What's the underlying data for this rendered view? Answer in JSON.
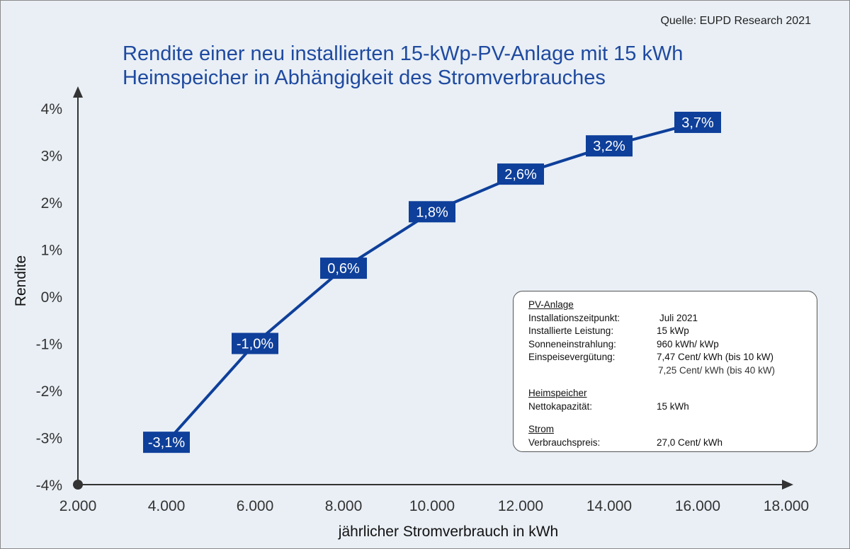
{
  "source": "Quelle: EUPD Research 2021",
  "title_lines": [
    "Rendite einer neu installierten 15-kWp-PV-Anlage mit 15 kWh",
    "Heimspeicher in Abhängigkeit des Stromverbrauches"
  ],
  "chart_data": {
    "type": "line",
    "title": "Rendite einer neu installierten 15-kWp-PV-Anlage mit 15 kWh Heimspeicher in Abhängigkeit des Stromverbrauches",
    "xlabel": "jährlicher Stromverbrauch in kWh",
    "ylabel": "Rendite",
    "xlim": [
      2000,
      18000
    ],
    "ylim": [
      -4,
      4
    ],
    "x_ticks": [
      2000,
      4000,
      6000,
      8000,
      10000,
      12000,
      14000,
      16000,
      18000
    ],
    "x_tick_labels": [
      "2.000",
      "4.000",
      "6.000",
      "8.000",
      "10.000",
      "12.000",
      "14.000",
      "16.000",
      "18.000"
    ],
    "y_ticks": [
      -4,
      -3,
      -2,
      -1,
      0,
      1,
      2,
      3,
      4
    ],
    "y_tick_labels": [
      "-4%",
      "-3%",
      "-2%",
      "-1%",
      "0%",
      "1%",
      "2%",
      "3%",
      "4%"
    ],
    "grid": false,
    "series": [
      {
        "x": [
          4000,
          6000,
          8000,
          10000,
          12000,
          14000,
          16000
        ],
        "values": [
          -3.1,
          -1.0,
          0.6,
          1.8,
          2.6,
          3.2,
          3.7
        ],
        "labels": [
          "-3,1%",
          "-1,0%",
          "0,6%",
          "1,8%",
          "2,6%",
          "3,2%",
          "3,7%"
        ]
      }
    ],
    "colors": {
      "line": "#0e3f9a",
      "label_bg": "#0e3f9a",
      "label_text": "#ffffff",
      "axis": "#333333"
    }
  },
  "info_box": {
    "sections": [
      {
        "heading": "PV-Anlage",
        "rows": [
          {
            "label": "Installationszeitpunkt:",
            "value": "Juli 2021"
          },
          {
            "label": "Installierte Leistung:",
            "value": "15 kWp"
          },
          {
            "label": "Sonneneinstrahlung:",
            "value": "960 kWh/ kWp"
          },
          {
            "label": "Einspeisevergütung:",
            "value": "7,47 Cent/ kWh (bis 10 kW)"
          },
          {
            "label": "",
            "value": "7,25 Cent/ kWh (bis 40 kW)"
          }
        ]
      },
      {
        "heading": "Heimspeicher",
        "rows": [
          {
            "label": "Nettokapazität:",
            "value": "15 kWh"
          }
        ]
      },
      {
        "heading": "Strom",
        "rows": [
          {
            "label": "Verbrauchspreis:",
            "value": "27,0 Cent/ kWh"
          }
        ]
      }
    ]
  }
}
